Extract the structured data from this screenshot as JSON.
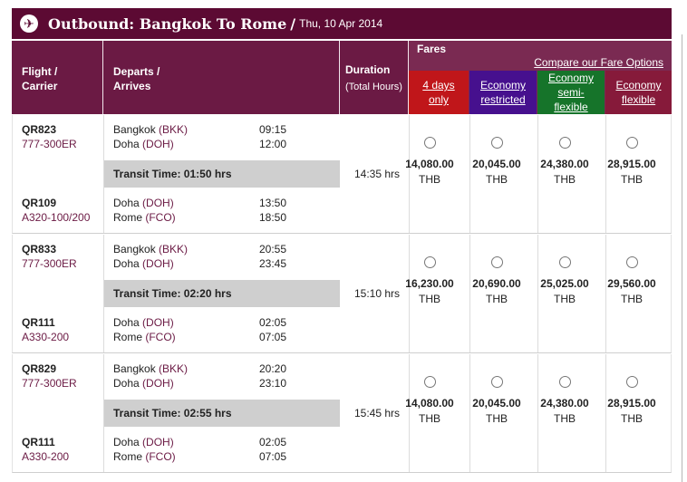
{
  "title": {
    "main": "Outbound: Bangkok To Rome",
    "slash": "/",
    "date": "Thu, 10 Apr 2014",
    "icon": "airplane-icon"
  },
  "header": {
    "flight_l1": "Flight /",
    "flight_l2": "Carrier",
    "departs_l1": "Departs /",
    "departs_l2": "Arrives",
    "duration": "Duration",
    "duration_sub": "(Total Hours)",
    "fares": "Fares",
    "compare": "Compare our Fare Options",
    "options": [
      {
        "l1": "4 days",
        "l2": "only",
        "l3": "",
        "color": "#c0161a"
      },
      {
        "l1": "Economy",
        "l2": "restricted",
        "l3": "",
        "color": "#46108e"
      },
      {
        "l1": "Economy",
        "l2": "semi-",
        "l3": "flexible",
        "color": "#16742a"
      },
      {
        "l1": "Economy",
        "l2": "flexible",
        "l3": "",
        "color": "#861a3a"
      }
    ]
  },
  "rows": [
    {
      "seg1": {
        "flight": "QR823",
        "aircraft": "777-300ER",
        "from_city": "Bangkok",
        "from_code": "(BKK)",
        "dep": "09:15",
        "to_city": "Doha",
        "to_code": "(DOH)",
        "arr": "12:00"
      },
      "transit": "Transit Time: 01:50 hrs",
      "seg2": {
        "flight": "QR109",
        "aircraft": "A320-100/200",
        "from_city": "Doha",
        "from_code": "(DOH)",
        "dep": "13:50",
        "to_city": "Rome",
        "to_code": "(FCO)",
        "arr": "18:50"
      },
      "duration": "14:35 hrs",
      "fares": [
        "14,080.00",
        "20,045.00",
        "24,380.00",
        "28,915.00"
      ],
      "currency": "THB"
    },
    {
      "seg1": {
        "flight": "QR833",
        "aircraft": "777-300ER",
        "from_city": "Bangkok",
        "from_code": "(BKK)",
        "dep": "20:55",
        "to_city": "Doha",
        "to_code": "(DOH)",
        "arr": "23:45"
      },
      "transit": "Transit Time: 02:20 hrs",
      "seg2": {
        "flight": "QR111",
        "aircraft": "A330-200",
        "from_city": "Doha",
        "from_code": "(DOH)",
        "dep": "02:05",
        "to_city": "Rome",
        "to_code": "(FCO)",
        "arr": "07:05"
      },
      "duration": "15:10 hrs",
      "fares": [
        "16,230.00",
        "20,690.00",
        "25,025.00",
        "29,560.00"
      ],
      "currency": "THB"
    },
    {
      "seg1": {
        "flight": "QR829",
        "aircraft": "777-300ER",
        "from_city": "Bangkok",
        "from_code": "(BKK)",
        "dep": "20:20",
        "to_city": "Doha",
        "to_code": "(DOH)",
        "arr": "23:10"
      },
      "transit": "Transit Time: 02:55 hrs",
      "seg2": {
        "flight": "QR111",
        "aircraft": "A330-200",
        "from_city": "Doha",
        "from_code": "(DOH)",
        "dep": "02:05",
        "to_city": "Rome",
        "to_code": "(FCO)",
        "arr": "07:05"
      },
      "duration": "15:45 hrs",
      "fares": [
        "14,080.00",
        "20,045.00",
        "24,380.00",
        "28,915.00"
      ],
      "currency": "THB"
    }
  ]
}
